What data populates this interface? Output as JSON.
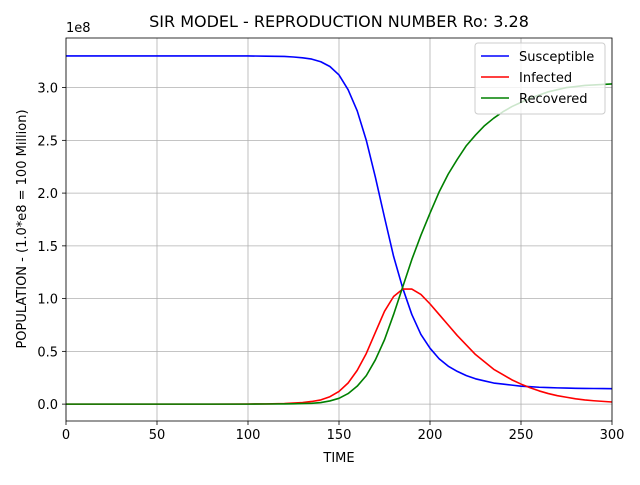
{
  "chart_data": {
    "type": "line",
    "title": "SIR MODEL - REPRODUCTION NUMBER Ro: 3.28",
    "xlabel": "TIME",
    "ylabel": "POPULATION - (1.0*e8 = 100 Million)",
    "y_offset_label": "1e8",
    "xlim": [
      0,
      300
    ],
    "ylim": [
      -0.16,
      3.47
    ],
    "x_ticks": [
      0,
      50,
      100,
      150,
      200,
      250,
      300
    ],
    "y_ticks": [
      0.0,
      0.5,
      1.0,
      1.5,
      2.0,
      2.5,
      3.0
    ],
    "x_tick_labels": [
      "0",
      "50",
      "100",
      "150",
      "200",
      "250",
      "300"
    ],
    "y_tick_labels": [
      "0.0",
      "0.5",
      "1.0",
      "1.5",
      "2.0",
      "2.5",
      "3.0"
    ],
    "grid": true,
    "legend_position": "top-right",
    "x": [
      0,
      20,
      40,
      60,
      80,
      100,
      110,
      120,
      125,
      130,
      135,
      140,
      145,
      150,
      155,
      160,
      165,
      170,
      175,
      180,
      185,
      190,
      195,
      200,
      205,
      210,
      215,
      220,
      225,
      230,
      235,
      240,
      245,
      250,
      255,
      260,
      265,
      270,
      275,
      280,
      285,
      290,
      295,
      300
    ],
    "series": [
      {
        "name": "Susceptible",
        "color": "#0000ff",
        "values": [
          3.3,
          3.3,
          3.3,
          3.3,
          3.3,
          3.3,
          3.298,
          3.295,
          3.29,
          3.282,
          3.27,
          3.245,
          3.2,
          3.12,
          2.98,
          2.78,
          2.5,
          2.15,
          1.77,
          1.4,
          1.1,
          0.85,
          0.66,
          0.53,
          0.43,
          0.36,
          0.31,
          0.27,
          0.24,
          0.22,
          0.2,
          0.19,
          0.18,
          0.17,
          0.165,
          0.16,
          0.157,
          0.154,
          0.152,
          0.15,
          0.149,
          0.148,
          0.147,
          0.146
        ]
      },
      {
        "name": "Infected",
        "color": "#ff0000",
        "values": [
          0.0,
          0.0,
          0.0,
          0.0,
          0.0,
          0.001,
          0.002,
          0.005,
          0.01,
          0.015,
          0.025,
          0.04,
          0.07,
          0.12,
          0.2,
          0.32,
          0.48,
          0.68,
          0.88,
          1.02,
          1.09,
          1.09,
          1.04,
          0.95,
          0.85,
          0.75,
          0.65,
          0.56,
          0.47,
          0.4,
          0.33,
          0.28,
          0.23,
          0.19,
          0.155,
          0.125,
          0.1,
          0.08,
          0.065,
          0.05,
          0.04,
          0.032,
          0.026,
          0.02
        ]
      },
      {
        "name": "Recovered",
        "color": "#008000",
        "values": [
          0.0,
          0.0,
          0.0,
          0.0,
          0.0,
          0.0,
          0.001,
          0.002,
          0.003,
          0.005,
          0.008,
          0.015,
          0.03,
          0.055,
          0.1,
          0.17,
          0.27,
          0.42,
          0.61,
          0.85,
          1.11,
          1.37,
          1.6,
          1.81,
          2.01,
          2.18,
          2.32,
          2.45,
          2.55,
          2.64,
          2.71,
          2.77,
          2.82,
          2.86,
          2.9,
          2.93,
          2.96,
          2.98,
          3.0,
          3.01,
          3.02,
          3.025,
          3.03,
          3.035
        ]
      }
    ]
  }
}
